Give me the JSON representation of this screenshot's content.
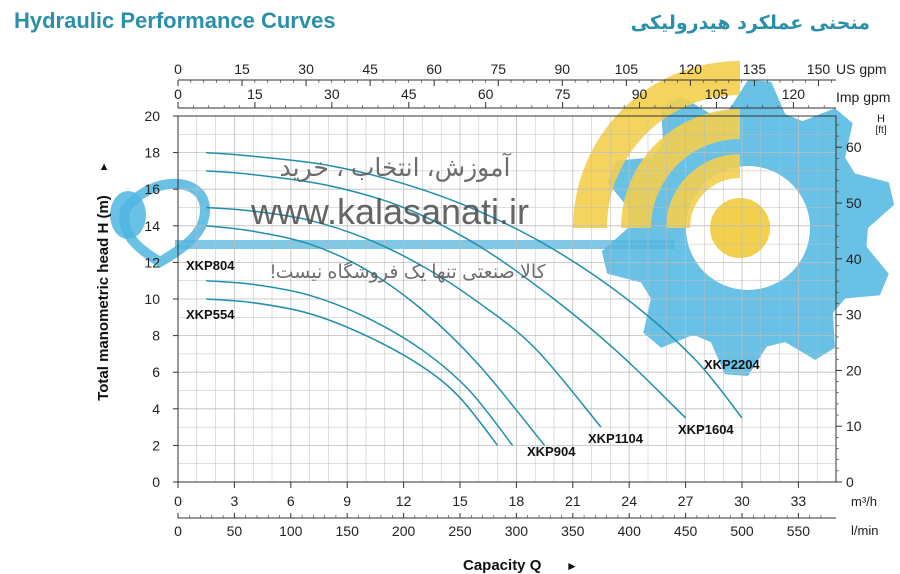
{
  "title_en": "Hydraulic Performance Curves",
  "title_fa": "منحنی عملکرد هیدرولیکی",
  "watermark": {
    "line1": "آموزش، انتخاب ، خرید",
    "url": "www.kalasanati.ir",
    "line2": "کالا صنعتی تنها یک فروشگاه نیست!"
  },
  "colors": {
    "curve": "#1f8fae",
    "title": "#2a8fa8",
    "logo_blue": "#4fb6e2",
    "logo_yellow": "#f3cf4e",
    "grid": "#bdbdbd"
  },
  "chart_data": {
    "type": "line",
    "y_axis": {
      "label": "Total manometric head H (m)",
      "range": [
        0,
        20
      ],
      "ticks": [
        0,
        2,
        4,
        6,
        8,
        10,
        12,
        14,
        16,
        18,
        20
      ]
    },
    "y_axis_right": {
      "label": "H [ft]",
      "range": [
        0,
        65.6
      ],
      "ticks": [
        0,
        10,
        20,
        30,
        40,
        50,
        60
      ]
    },
    "x_axis_bottom_m3h": {
      "unit": "m³/h",
      "range": [
        0,
        35
      ],
      "ticks": [
        0,
        3,
        6,
        9,
        12,
        15,
        18,
        21,
        24,
        27,
        30,
        33
      ]
    },
    "x_axis_bottom_lmin": {
      "unit": "l/min",
      "ticks": [
        0,
        50,
        100,
        150,
        200,
        250,
        300,
        350,
        400,
        450,
        500,
        550
      ]
    },
    "x_axis_top_usgpm": {
      "unit": "US gpm",
      "ticks": [
        0,
        15,
        30,
        45,
        60,
        75,
        90,
        105,
        120,
        135,
        150
      ]
    },
    "x_axis_top_impgpm": {
      "unit": "Imp gpm",
      "ticks": [
        0,
        15,
        30,
        45,
        60,
        75,
        90,
        105,
        120
      ]
    },
    "x_label": "Capacity Q",
    "series": [
      {
        "name": "XKP554",
        "points": [
          [
            1.5,
            10.0
          ],
          [
            4,
            9.8
          ],
          [
            7,
            9.2
          ],
          [
            10,
            8.0
          ],
          [
            13,
            6.3
          ],
          [
            15,
            4.6
          ],
          [
            17,
            2.0
          ]
        ]
      },
      {
        "name": "XKP804",
        "points": [
          [
            1.5,
            11.0
          ],
          [
            4,
            10.8
          ],
          [
            7,
            10.2
          ],
          [
            10,
            9.0
          ],
          [
            13,
            7.2
          ],
          [
            15.5,
            5.0
          ],
          [
            17.8,
            2.0
          ]
        ]
      },
      {
        "name": "XKP904",
        "points": [
          [
            1.5,
            14.0
          ],
          [
            4,
            13.7
          ],
          [
            7,
            13.0
          ],
          [
            10,
            11.6
          ],
          [
            13,
            9.4
          ],
          [
            16,
            6.4
          ],
          [
            19.5,
            2.0
          ]
        ]
      },
      {
        "name": "XKP1104",
        "points": [
          [
            1.5,
            15.0
          ],
          [
            4,
            14.8
          ],
          [
            7,
            14.3
          ],
          [
            10,
            13.3
          ],
          [
            13,
            11.8
          ],
          [
            16,
            9.8
          ],
          [
            19,
            7.3
          ],
          [
            22.5,
            3.0
          ]
        ]
      },
      {
        "name": "XKP1604",
        "points": [
          [
            1.5,
            17.0
          ],
          [
            4,
            16.8
          ],
          [
            8,
            16.2
          ],
          [
            12,
            15.0
          ],
          [
            16,
            12.9
          ],
          [
            20,
            10.0
          ],
          [
            23.5,
            7.0
          ],
          [
            27,
            3.5
          ]
        ]
      },
      {
        "name": "XKP2204",
        "points": [
          [
            1.5,
            18.0
          ],
          [
            4,
            17.8
          ],
          [
            8,
            17.3
          ],
          [
            12,
            16.3
          ],
          [
            16,
            14.8
          ],
          [
            20,
            12.7
          ],
          [
            24,
            9.9
          ],
          [
            27.5,
            6.7
          ],
          [
            30,
            3.5
          ]
        ]
      }
    ],
    "labels": [
      {
        "series": "XKP804",
        "text": "XKP804"
      },
      {
        "series": "XKP554",
        "text": "XKP554"
      },
      {
        "series": "XKP904",
        "text": "XKP904"
      },
      {
        "series": "XKP1104",
        "text": "XKP1104"
      },
      {
        "series": "XKP1604",
        "text": "XKP1604"
      },
      {
        "series": "XKP2204",
        "text": "XKP2204"
      }
    ]
  }
}
